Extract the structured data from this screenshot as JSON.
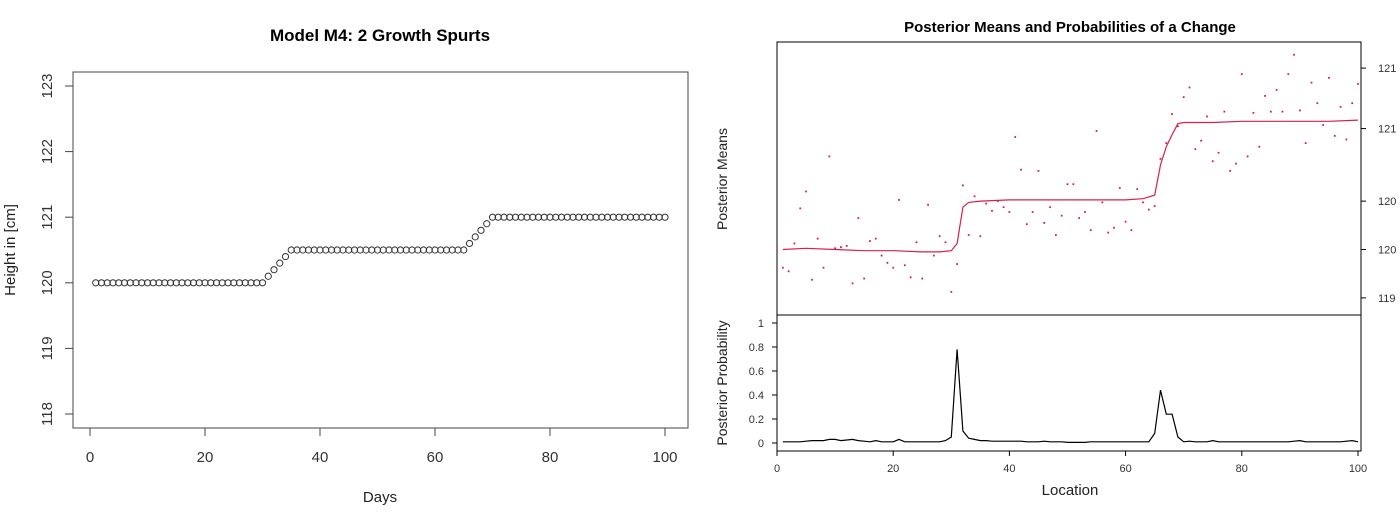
{
  "chart_data": [
    {
      "type": "scatter",
      "title": "Model M4: 2 Growth Spurts",
      "xlabel": "Days",
      "ylabel": "Height in [cm]",
      "xlim": [
        0,
        100
      ],
      "ylim": [
        117.8,
        123.2
      ],
      "xticks": [
        "0",
        "20",
        "40",
        "60",
        "80",
        "100"
      ],
      "yticks": [
        "118",
        "119",
        "120",
        "121",
        "122",
        "123"
      ],
      "marker": "open-circle",
      "series": [
        {
          "x": [
            1,
            2,
            3,
            4,
            5,
            6,
            7,
            8,
            9,
            10,
            11,
            12,
            13,
            14,
            15,
            16,
            17,
            18,
            19,
            20,
            21,
            22,
            23,
            24,
            25,
            26,
            27,
            28,
            29,
            30,
            31,
            32,
            33,
            34,
            35,
            36,
            37,
            38,
            39,
            40,
            41,
            42,
            43,
            44,
            45,
            46,
            47,
            48,
            49,
            50,
            51,
            52,
            53,
            54,
            55,
            56,
            57,
            58,
            59,
            60,
            61,
            62,
            63,
            64,
            65,
            66,
            67,
            68,
            69,
            70,
            71,
            72,
            73,
            74,
            75,
            76,
            77,
            78,
            79,
            80,
            81,
            82,
            83,
            84,
            85,
            86,
            87,
            88,
            89,
            90,
            91,
            92,
            93,
            94,
            95,
            96,
            97,
            98,
            99,
            100
          ],
          "y": [
            120,
            120,
            120,
            120,
            120,
            120,
            120,
            120,
            120,
            120,
            120,
            120,
            120,
            120,
            120,
            120,
            120,
            120,
            120,
            120,
            120,
            120,
            120,
            120,
            120,
            120,
            120,
            120,
            120,
            120,
            120.1,
            120.2,
            120.3,
            120.4,
            120.5,
            120.5,
            120.5,
            120.5,
            120.5,
            120.5,
            120.5,
            120.5,
            120.5,
            120.5,
            120.5,
            120.5,
            120.5,
            120.5,
            120.5,
            120.5,
            120.5,
            120.5,
            120.5,
            120.5,
            120.5,
            120.5,
            120.5,
            120.5,
            120.5,
            120.5,
            120.5,
            120.5,
            120.5,
            120.5,
            120.5,
            120.6,
            120.7,
            120.8,
            120.9,
            121,
            121,
            121,
            121,
            121,
            121,
            121,
            121,
            121,
            121,
            121,
            121,
            121,
            121,
            121,
            121,
            121,
            121,
            121,
            121,
            121,
            121,
            121,
            121,
            121,
            121,
            121,
            121,
            121,
            121,
            121
          ]
        }
      ]
    },
    {
      "type": "line",
      "title": "Posterior Means and Probabilities of a Change",
      "xlabel": "Location",
      "xlim": [
        0,
        100
      ],
      "xticks": [
        "0",
        "20",
        "40",
        "60",
        "80",
        "100"
      ],
      "panels": [
        {
          "ylabel": "Posterior Means",
          "ylim": [
            119.4,
            121.5
          ],
          "yticks_right": [
            "119",
            "120",
            "120",
            "121",
            "121"
          ],
          "ytick_values": [
            119.5,
            119.9,
            120.3,
            120.9,
            121.4
          ],
          "color": "#d6204a",
          "series": [
            {
              "type": "line",
              "x": [
                1,
                5,
                10,
                15,
                20,
                25,
                28,
                30,
                31,
                32,
                33,
                35,
                40,
                45,
                50,
                55,
                60,
                63,
                65,
                66,
                67,
                68,
                69,
                70,
                75,
                80,
                85,
                90,
                95,
                100
              ],
              "y": [
                119.9,
                119.91,
                119.9,
                119.89,
                119.89,
                119.88,
                119.88,
                119.89,
                119.95,
                120.25,
                120.29,
                120.3,
                120.31,
                120.31,
                120.31,
                120.31,
                120.31,
                120.32,
                120.35,
                120.6,
                120.75,
                120.85,
                120.94,
                120.95,
                120.95,
                120.96,
                120.96,
                120.96,
                120.96,
                120.97
              ]
            },
            {
              "type": "scatter",
              "x": [
                1,
                2,
                3,
                4,
                5,
                6,
                7,
                8,
                9,
                10,
                11,
                12,
                13,
                14,
                15,
                16,
                17,
                18,
                19,
                20,
                21,
                22,
                23,
                24,
                25,
                26,
                27,
                28,
                29,
                30,
                31,
                32,
                33,
                34,
                35,
                36,
                37,
                38,
                39,
                40,
                41,
                42,
                43,
                44,
                45,
                46,
                47,
                48,
                49,
                50,
                51,
                52,
                53,
                54,
                55,
                56,
                57,
                58,
                59,
                60,
                61,
                62,
                63,
                64,
                65,
                66,
                67,
                68,
                69,
                70,
                71,
                72,
                73,
                74,
                75,
                76,
                77,
                78,
                79,
                80,
                81,
                82,
                83,
                84,
                85,
                86,
                87,
                88,
                89,
                90,
                91,
                92,
                93,
                94,
                95,
                96,
                97,
                98,
                99,
                100
              ],
              "y": [
                119.75,
                119.72,
                119.95,
                120.24,
                120.38,
                119.65,
                119.99,
                119.75,
                120.67,
                119.91,
                119.92,
                119.93,
                119.62,
                120.16,
                119.66,
                119.97,
                119.99,
                119.85,
                119.79,
                119.75,
                120.31,
                119.77,
                119.67,
                119.96,
                119.66,
                120.27,
                119.85,
                120.01,
                119.96,
                119.55,
                119.78,
                120.43,
                120.02,
                120.34,
                120.01,
                120.28,
                120.22,
                120.3,
                120.25,
                120.21,
                120.83,
                120.56,
                120.11,
                120.21,
                120.55,
                120.12,
                120.25,
                120.02,
                120.18,
                120.44,
                120.44,
                120.16,
                120.21,
                120.06,
                120.88,
                120.29,
                120.04,
                120.08,
                120.41,
                120.13,
                120.06,
                120.4,
                120.29,
                120.23,
                120.26,
                120.65,
                120.78,
                121.02,
                120.92,
                121.16,
                121.24,
                120.73,
                120.8,
                121,
                120.63,
                120.7,
                121.04,
                120.55,
                120.61,
                121.35,
                120.67,
                121.03,
                120.75,
                121.17,
                121.04,
                121.22,
                121.04,
                121.35,
                121.51,
                121.05,
                120.78,
                121.28,
                121.11,
                120.93,
                121.32,
                120.84,
                121.08,
                120.81,
                121.11,
                121.27
              ]
            }
          ]
        },
        {
          "ylabel": "Posterior Probability",
          "ylim": [
            0,
            1
          ],
          "yticks": [
            "0",
            "0.2",
            "0.4",
            "0.6",
            "0.8",
            "1"
          ],
          "color": "#000000",
          "series": [
            {
              "type": "line",
              "x": [
                1,
                2,
                3,
                4,
                5,
                6,
                7,
                8,
                9,
                10,
                11,
                12,
                13,
                14,
                15,
                16,
                17,
                18,
                19,
                20,
                21,
                22,
                23,
                24,
                25,
                26,
                27,
                28,
                29,
                30,
                31,
                32,
                33,
                34,
                35,
                36,
                37,
                38,
                39,
                40,
                41,
                42,
                43,
                44,
                45,
                46,
                47,
                48,
                49,
                50,
                51,
                52,
                53,
                54,
                55,
                56,
                57,
                58,
                59,
                60,
                61,
                62,
                63,
                64,
                65,
                66,
                67,
                68,
                69,
                70,
                71,
                72,
                73,
                74,
                75,
                76,
                77,
                78,
                79,
                80,
                81,
                82,
                83,
                84,
                85,
                86,
                87,
                88,
                89,
                90,
                91,
                92,
                93,
                94,
                95,
                96,
                97,
                98,
                99,
                100
              ],
              "y": [
                0.01,
                0.01,
                0.01,
                0.01,
                0.015,
                0.02,
                0.02,
                0.02,
                0.03,
                0.03,
                0.02,
                0.025,
                0.03,
                0.02,
                0.015,
                0.01,
                0.02,
                0.01,
                0.01,
                0.01,
                0.03,
                0.01,
                0.01,
                0.01,
                0.01,
                0.01,
                0.01,
                0.01,
                0.02,
                0.05,
                0.78,
                0.1,
                0.04,
                0.03,
                0.02,
                0.02,
                0.015,
                0.015,
                0.015,
                0.015,
                0.015,
                0.015,
                0.01,
                0.01,
                0.01,
                0.015,
                0.01,
                0.01,
                0.01,
                0.005,
                0.005,
                0.005,
                0.005,
                0.01,
                0.01,
                0.01,
                0.01,
                0.01,
                0.01,
                0.01,
                0.01,
                0.01,
                0.01,
                0.01,
                0.08,
                0.44,
                0.24,
                0.24,
                0.05,
                0.01,
                0.015,
                0.01,
                0.01,
                0.01,
                0.02,
                0.01,
                0.01,
                0.01,
                0.01,
                0.01,
                0.01,
                0.01,
                0.01,
                0.01,
                0.01,
                0.01,
                0.01,
                0.01,
                0.015,
                0.02,
                0.01,
                0.01,
                0.01,
                0.01,
                0.01,
                0.01,
                0.01,
                0.015,
                0.02,
                0.01
              ]
            }
          ]
        }
      ]
    }
  ]
}
